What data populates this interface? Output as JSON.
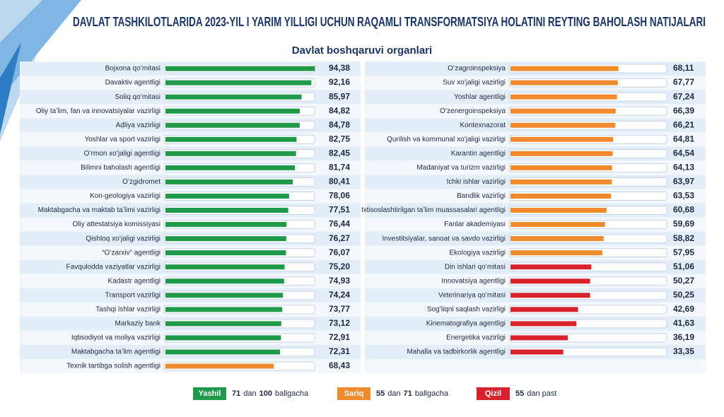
{
  "title": "DAVLAT TASHKILOTLARIDA 2023-YIL I YARIM YILLIGI UCHUN RAQAMLI TRANSFORMATSIYA HOLATINI REYTING BAHOLASH NATIJALARI",
  "subtitle": "Davlat boshqaruvi organlari",
  "chart_data": [
    {
      "type": "bar",
      "orientation": "horizontal",
      "xlim": [
        0,
        100
      ],
      "categories": [
        "Bojxona qoʻmitasi",
        "Davaktiv agentligi",
        "Soliq qoʻmitasi",
        "Oliy taʼlim, fan va innovatsiyalar vazirligi",
        "Adliya vazirligi",
        "Yoshlar va sport vazirligi",
        "Oʻrmon xoʻjaligi agentligi",
        "Bilimni baholash agentligi",
        "Oʻzgidromet",
        "Kon-geologiya vazirligi",
        "Maktabgacha va maktab taʼlimi vazirligi",
        "Oliy attestatsiya komissiyasi",
        "Qishloq xoʻjaligi vazirligi",
        "“Oʻzarxiv” agentligi",
        "Favqulodda vaziyatlar vazirligi",
        "Kadastr agentligi",
        "Transport vazirligi",
        "Tashqi ishlar vazirligi",
        "Markaziy bank",
        "Iqtisodiyot va moliya vazirligi",
        "Maktabgacha taʼlim agentligi",
        "Texnik tartibga solish agentligi"
      ],
      "values": [
        94.38,
        92.16,
        85.97,
        84.82,
        84.78,
        82.75,
        82.45,
        81.74,
        80.41,
        78.06,
        77.51,
        76.44,
        76.27,
        76.07,
        75.2,
        74.93,
        74.24,
        73.77,
        73.12,
        72.91,
        72.31,
        68.43
      ],
      "value_labels": [
        "94,38",
        "92,16",
        "85,97",
        "84,82",
        "84,78",
        "82,75",
        "82,45",
        "81,74",
        "80,41",
        "78,06",
        "77,51",
        "76,44",
        "76,27",
        "76,07",
        "75,20",
        "74,93",
        "74,24",
        "73,77",
        "73,12",
        "72,91",
        "72,31",
        "68,43"
      ]
    },
    {
      "type": "bar",
      "orientation": "horizontal",
      "xlim": [
        0,
        100
      ],
      "categories": [
        "Oʻzagroinspeksiya",
        "Suv xoʻjaligi vazirligi",
        "Yoshlar agentligi",
        "Oʻzenergoinspeksiya",
        "Kontexnazorat",
        "Qurilish va kommunal xoʻjaligi vazirligi",
        "Karantin agentligi",
        "Madaniyat va turizm vazirligi",
        "Ichki ishlar vazirligi",
        "Bandlik vazirligi",
        "Ixtisoslashtirilgan taʼlim muassasalari agentligi",
        "Fanlar akademiyasi",
        "Investitsiyalar, sanoat va savdo vazirligi",
        "Ekologiya vazirligi",
        "Din ishlari qoʻmitasi",
        "Innovatsiya agentligi",
        "Veterinariya qoʻmitasi",
        "Sogʻliqni saqlash vazirligi",
        "Kinematografiya agentligi",
        "Energetika vazirligi",
        "Mahalla va tadbirkorlik agentligi"
      ],
      "values": [
        68.11,
        67.77,
        67.24,
        66.39,
        66.21,
        64.81,
        64.54,
        64.13,
        63.97,
        63.53,
        60.68,
        59.69,
        58.82,
        57.95,
        51.06,
        50.27,
        50.25,
        42.69,
        41.63,
        36.19,
        33.35
      ],
      "value_labels": [
        "68,11",
        "67,77",
        "67,24",
        "66,39",
        "66,21",
        "64,81",
        "64,54",
        "64,13",
        "63,97",
        "63,53",
        "60,68",
        "59,69",
        "58,82",
        "57,95",
        "51,06",
        "50,27",
        "50,25",
        "42,69",
        "41,63",
        "36,19",
        "33,35"
      ]
    }
  ],
  "legend": [
    {
      "label": "Yashil",
      "color": "#1e9a4a",
      "from": 71,
      "to": 100,
      "words": [
        "dan",
        "ballgacha"
      ]
    },
    {
      "label": "Sariq",
      "color": "#f08a2c",
      "from": 55,
      "to": 71,
      "words": [
        "dan",
        "ballgacha"
      ]
    },
    {
      "label": "Qizil",
      "color": "#d8232f",
      "to": 55,
      "words": [
        "dan past"
      ]
    }
  ]
}
